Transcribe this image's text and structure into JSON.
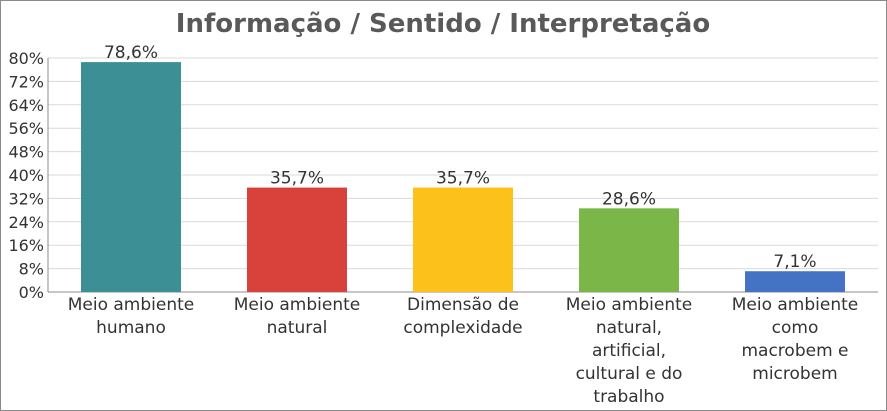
{
  "chart_data": {
    "type": "bar",
    "title": "Informação / Sentido / Interpretação",
    "xlabel": "",
    "ylabel": "",
    "ylim": [
      0,
      80
    ],
    "yticks": [
      0,
      8,
      16,
      24,
      32,
      40,
      48,
      56,
      64,
      72,
      80
    ],
    "ytick_labels": [
      "0%",
      "8%",
      "16%",
      "24%",
      "32%",
      "40%",
      "48%",
      "56%",
      "64%",
      "72%",
      "80%"
    ],
    "categories": [
      [
        "Meio ambiente",
        "humano"
      ],
      [
        "Meio ambiente",
        "natural"
      ],
      [
        "Dimensão de",
        "complexidade"
      ],
      [
        "Meio ambiente",
        "natural,",
        "artificial,",
        "cultural e do",
        "trabalho"
      ],
      [
        "Meio ambiente",
        "como",
        "macrobem e",
        "microbem"
      ]
    ],
    "values": [
      78.6,
      35.7,
      35.7,
      28.6,
      7.1
    ],
    "data_labels": [
      "78,6%",
      "35,7%",
      "35,7%",
      "28,6%",
      "7,1%"
    ],
    "colors": [
      "#3d8f96",
      "#d9423a",
      "#fcc21b",
      "#7ab648",
      "#4472c4"
    ],
    "grid": true,
    "legend": "none"
  }
}
